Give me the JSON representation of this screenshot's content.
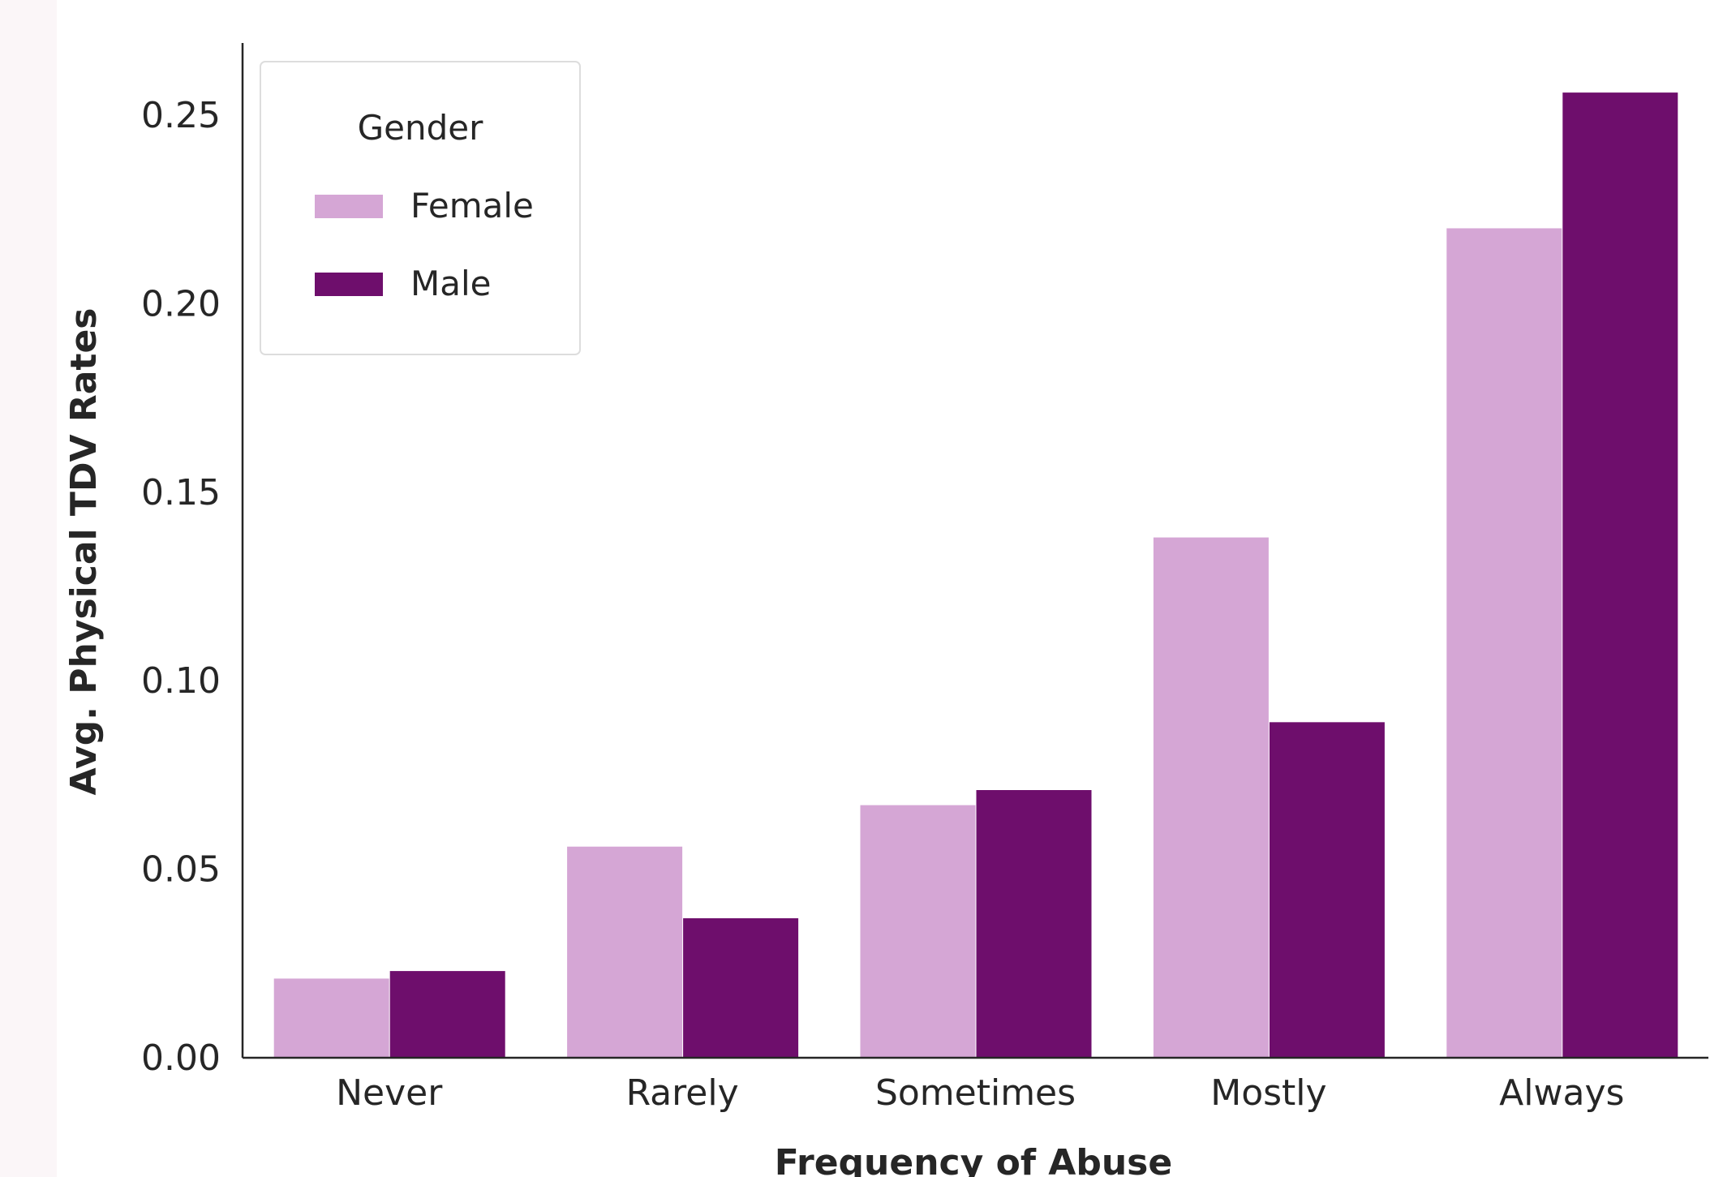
{
  "chart_data": {
    "type": "bar",
    "categories": [
      "Never",
      "Rarely",
      "Sometimes",
      "Mostly",
      "Always"
    ],
    "series": [
      {
        "name": "Female",
        "values": [
          0.021,
          0.056,
          0.067,
          0.138,
          0.22
        ]
      },
      {
        "name": "Male",
        "values": [
          0.023,
          0.037,
          0.071,
          0.089,
          0.256
        ]
      }
    ],
    "colors": {
      "Female": "#d5a6d5",
      "Male": "#6e0e6c"
    },
    "xlabel": "Frequency of Abuse",
    "ylabel": "Avg. Physical TDV Rates",
    "ylim": [
      0,
      0.27
    ],
    "yticks": [
      "0.00",
      "0.05",
      "0.10",
      "0.15",
      "0.20",
      "0.25"
    ],
    "legend": {
      "title": "Gender",
      "placement": "top-left"
    },
    "grid": false
  }
}
